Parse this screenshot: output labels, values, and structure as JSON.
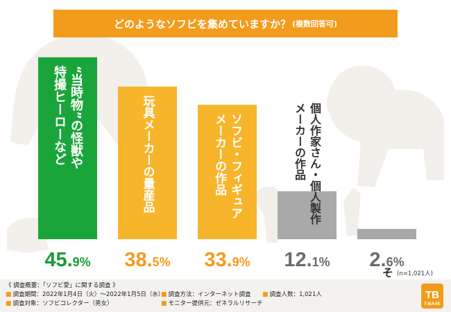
{
  "title": {
    "main": "どのようなソフビを集めていますか？",
    "sub": "(複数回答可)"
  },
  "colors": {
    "accent": "#f29b1c",
    "top_bar": "#1aa53a",
    "mid_bar": "#f7b52b",
    "low_bar": "#a9a9a9",
    "top_text": "#1a9a36",
    "mid_text": "#f29b1c",
    "low_text": "#6b6b6b"
  },
  "chart_data": {
    "type": "bar",
    "title": "どのようなソフビを集めていますか？(複数回答可)",
    "unit": "%",
    "categories": [
      "“当時物”の怪獣や特撮ヒーローなど",
      "玩具メーカーの量産品",
      "ソフビ・フィギュアメーカーの作品",
      "個人作家さん・個人製作メーカーの作品",
      "その他"
    ],
    "label_lines": [
      [
        "“当時物”の怪獣や",
        "特撮ヒーローなど"
      ],
      [
        "玩具メーカーの量産品"
      ],
      [
        "ソフビ・フィギュア",
        "メーカーの作品"
      ],
      [
        "個人作家さん・個人製作",
        "メーカーの作品"
      ],
      [
        "その他"
      ]
    ],
    "values": [
      45.9,
      38.5,
      33.9,
      12.1,
      2.6
    ],
    "value_labels": [
      {
        "int": "45.",
        "dec": "9",
        "unit": "%"
      },
      {
        "int": "38.",
        "dec": "5",
        "unit": "%"
      },
      {
        "int": "33.",
        "dec": "9",
        "unit": "%"
      },
      {
        "int": "12.",
        "dec": "1",
        "unit": "%"
      },
      {
        "int": "2.",
        "dec": "6",
        "unit": "%"
      }
    ],
    "ylim": [
      0,
      46
    ],
    "note": "(n=1,021人)"
  },
  "footer": {
    "heading": "《 調査概要：「ソフビ愛」に関する調査 》",
    "period": "調査期間：2022年1月4日（火）〜2022年1月5日（水）",
    "method": "調査方法：インターネット調査",
    "count": "調査人数：1,021人",
    "target": "調査対象：ソフビコレクター（男女）",
    "provider": "モニター提供元：ゼネラルリサーチ"
  },
  "logo": {
    "letters": "TB",
    "name": "T-BASE"
  }
}
